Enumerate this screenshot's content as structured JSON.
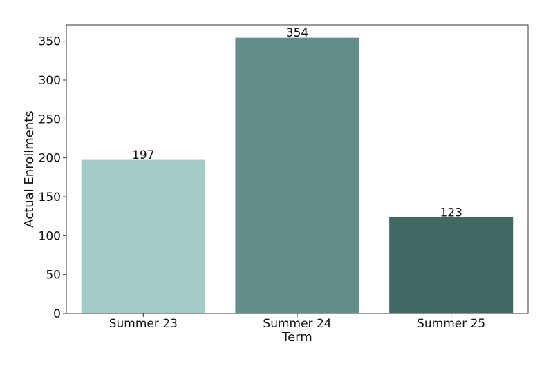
{
  "chart_data": {
    "type": "bar",
    "categories": [
      "Summer 23",
      "Summer 24",
      "Summer 25"
    ],
    "values": [
      197,
      354,
      123
    ],
    "data_labels": [
      "197",
      "354",
      "123"
    ],
    "colors": [
      "#a3cbc7",
      "#648e8a",
      "#416a65"
    ],
    "title": "",
    "xlabel": "Term",
    "ylabel": "Actual Enrollments",
    "ylim": [
      0,
      371
    ],
    "yticks": [
      0,
      50,
      100,
      150,
      200,
      250,
      300,
      350
    ],
    "grid": false,
    "legend": "none"
  }
}
